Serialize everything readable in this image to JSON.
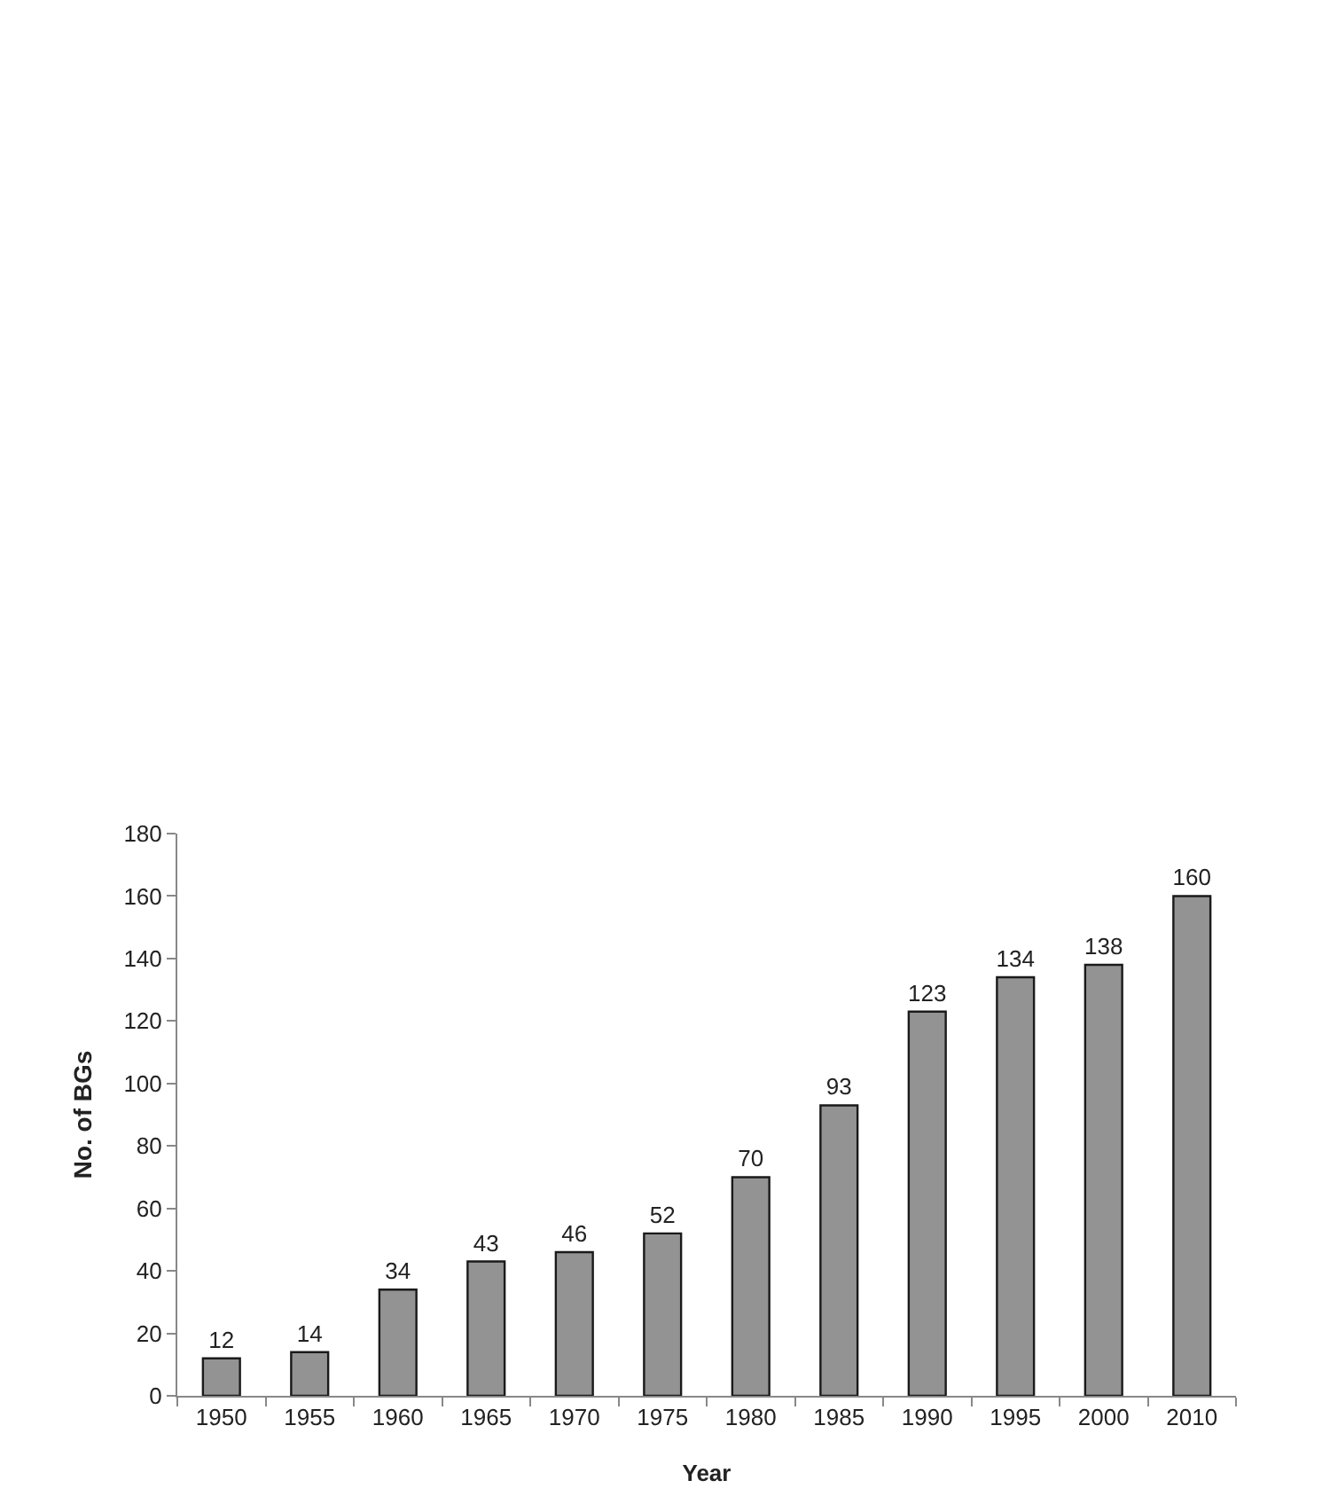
{
  "chart_data": {
    "type": "bar",
    "xlabel": "Year",
    "ylabel": "No. of BGs",
    "categories": [
      "1950",
      "1955",
      "1960",
      "1965",
      "1970",
      "1975",
      "1980",
      "1985",
      "1990",
      "1995",
      "2000",
      "2010"
    ],
    "values": [
      12,
      14,
      34,
      43,
      46,
      52,
      70,
      93,
      123,
      134,
      138,
      160
    ],
    "color": "#939393",
    "ylim": [
      0,
      180
    ],
    "yticks": [
      0,
      20,
      40,
      60,
      80,
      100,
      120,
      140,
      160,
      180
    ],
    "data_labels": true
  }
}
